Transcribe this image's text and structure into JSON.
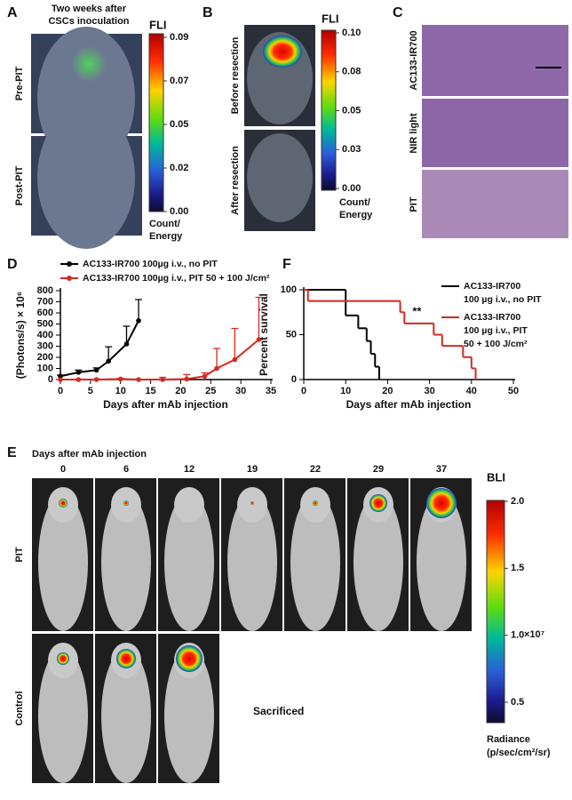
{
  "figure": {
    "a": {
      "label": "A",
      "title": [
        "Two weeks after",
        "CSCs inoculation"
      ],
      "rows": [
        "Pre-PIT",
        "Post-PIT"
      ],
      "colorbar": {
        "title": "FLI",
        "ticks": [
          "0.09",
          "0.07",
          "0.05",
          "0.02",
          "0.00"
        ],
        "unit": [
          "Count/",
          "Energy"
        ]
      }
    },
    "b": {
      "label": "B",
      "rows": [
        "Before resection",
        "After resection"
      ],
      "colorbar": {
        "title": "FLI",
        "ticks": [
          "0.10",
          "0.08",
          "0.05",
          "0.03",
          "0.00"
        ],
        "unit": [
          "Count/",
          "Energy"
        ]
      }
    },
    "c": {
      "label": "C",
      "rows": [
        "AC133-IR700",
        "NIR light",
        "PIT"
      ]
    },
    "d": {
      "label": "D"
    },
    "f": {
      "label": "F"
    },
    "e": {
      "label": "E",
      "title": "Days after mAb injection",
      "days": [
        "0",
        "6",
        "12",
        "19",
        "22",
        "29",
        "37"
      ],
      "rows": [
        "PIT",
        "Control"
      ],
      "note": "Sacrificed",
      "colorbar": {
        "title": "BLI",
        "ticks": [
          "2.0",
          "1.5",
          "1.0",
          "0.5"
        ],
        "multiplier": "×10⁷",
        "unit": [
          "Radiance",
          "(p/sec/cm²/sr)"
        ]
      }
    }
  },
  "chart_data": [
    {
      "type": "line",
      "ylabel": "(Photons/s) × 10⁶",
      "xlabel": "Days after mAb injection",
      "xlim": [
        0,
        35
      ],
      "ylim": [
        0,
        800
      ],
      "xticks": [
        0,
        5,
        10,
        15,
        20,
        25,
        30,
        35
      ],
      "yticks": [
        0,
        100,
        200,
        300,
        400,
        500,
        600,
        700,
        800
      ],
      "series": [
        {
          "name": [
            "AC133-IR700 100µg i.v., no PIT"
          ],
          "color": "#000000",
          "x": [
            0,
            3,
            6,
            8,
            11,
            13
          ],
          "values": [
            30,
            65,
            85,
            165,
            320,
            530
          ],
          "errors": [
            10,
            20,
            20,
            130,
            160,
            190
          ]
        },
        {
          "name": [
            "AC133-IR700 100µg i.v., PIT 50 + 100 J/cm²"
          ],
          "color": "#d42a20",
          "x": [
            0,
            3,
            6,
            10,
            13,
            17,
            21,
            24,
            26,
            29,
            33
          ],
          "values": [
            0,
            0,
            0,
            5,
            0,
            0,
            5,
            30,
            100,
            180,
            360
          ],
          "errors": [
            0,
            0,
            0,
            5,
            0,
            20,
            40,
            30,
            180,
            280,
            380
          ]
        }
      ]
    },
    {
      "type": "step",
      "ylabel": "Percent survival",
      "xlabel": "Days after mAb injection",
      "annotation": "**",
      "xlim": [
        0,
        50
      ],
      "ylim": [
        0,
        100
      ],
      "xticks": [
        0,
        10,
        20,
        30,
        40,
        50
      ],
      "yticks": [
        0,
        50,
        100
      ],
      "series": [
        {
          "name": [
            "AC133-IR700",
            "100 µg  i.v., no PIT"
          ],
          "color": "#000000",
          "x": [
            0,
            10,
            13,
            15,
            16,
            17,
            18
          ],
          "values": [
            100,
            71.4,
            57.1,
            42.9,
            28.6,
            14.3,
            0
          ]
        },
        {
          "name": [
            "AC133-IR700",
            "100 µg  i.v., PIT",
            "50 + 100 J/cm²"
          ],
          "color": "#d42a20",
          "x": [
            0,
            1,
            23,
            24,
            31,
            33,
            38,
            40,
            41
          ],
          "values": [
            100,
            87.5,
            75,
            62.5,
            50,
            37.5,
            25,
            12.5,
            0
          ]
        }
      ]
    }
  ]
}
